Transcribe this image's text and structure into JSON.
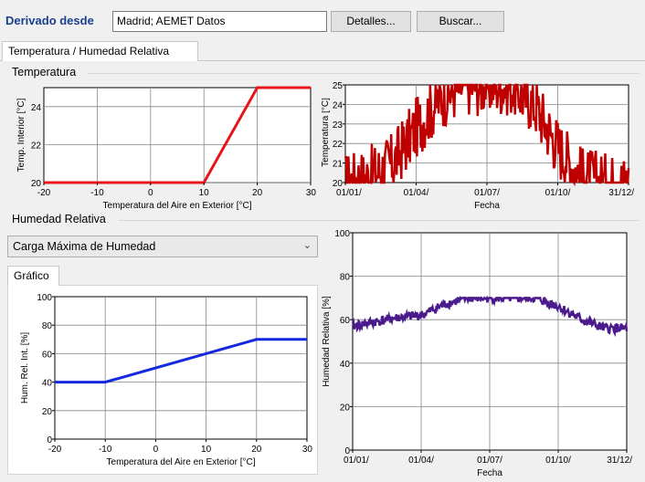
{
  "header": {
    "derived_label": "Derivado desde",
    "source_value": "Madrid; AEMET Datos",
    "details_button": "Detalles...",
    "search_button": "Buscar..."
  },
  "tabs": [
    {
      "label": "Temperatura / Humedad Relativa",
      "active": true
    }
  ],
  "temperature_group": {
    "title": "Temperatura",
    "setpoint_chart": {
      "type": "line",
      "xlabel": "Temperatura del Aire en Exterior [°C]",
      "ylabel": "Temp. Interior [°C]",
      "x_ticks": [
        "-20",
        "-10",
        "0",
        "10",
        "20",
        "30"
      ],
      "y_ticks": [
        "20",
        "22",
        "24"
      ],
      "color": "#e8141c"
    },
    "annual_chart": {
      "type": "line",
      "xlabel": "Fecha",
      "ylabel": "Temperatura [°C]",
      "x_ticks": [
        "01/01/",
        "01/04/",
        "01/07/",
        "01/10/",
        "31/12/"
      ],
      "y_ticks": [
        "20",
        "21",
        "22",
        "23",
        "24",
        "25"
      ],
      "color": "#c00000"
    }
  },
  "humidity_group": {
    "title": "Humedad Relativa",
    "mode_select": "Carga Máxima de Humedad",
    "subtab": "Gráfico",
    "setpoint_chart": {
      "type": "line",
      "xlabel": "Temperatura del Aire en Exterior [°C]",
      "ylabel": "Hum. Rel. Int. [%]",
      "x_ticks": [
        "-20",
        "-10",
        "0",
        "10",
        "20",
        "30"
      ],
      "y_ticks": [
        "0",
        "20",
        "40",
        "60",
        "80",
        "100"
      ],
      "color": "#1428e0"
    },
    "annual_chart": {
      "type": "line",
      "xlabel": "Fecha",
      "ylabel": "Humedad Relativa [%]",
      "x_ticks": [
        "01/01/",
        "01/04/",
        "01/07/",
        "01/10/",
        "31/12/"
      ],
      "y_ticks": [
        "0",
        "20",
        "40",
        "60",
        "80",
        "100"
      ],
      "color": "#4b1a8c"
    }
  },
  "chart_data": [
    {
      "type": "line",
      "xlabel": "Temperatura del Aire en Exterior [°C]",
      "ylabel": "Temp. Interior [°C]",
      "xlim": [
        -20,
        30
      ],
      "ylim": [
        20,
        25
      ],
      "x": [
        -20,
        10,
        20,
        30
      ],
      "y": [
        20,
        20,
        25,
        25
      ]
    },
    {
      "type": "line",
      "xlabel": "Fecha",
      "ylabel": "Temperatura [°C]",
      "x_ticks": [
        "01/01/",
        "01/04/",
        "01/07/",
        "01/10/",
        "31/12/"
      ],
      "ylim": [
        20,
        25
      ],
      "series": [
        {
          "values_by_month": [
            20,
            20.3,
            21,
            22.8,
            24.3,
            25,
            25,
            25,
            24,
            21.8,
            20.3,
            20
          ]
        }
      ]
    },
    {
      "type": "line",
      "xlabel": "Temperatura del Aire en Exterior [°C]",
      "ylabel": "Hum. Rel. Int. [%]",
      "xlim": [
        -20,
        30
      ],
      "ylim": [
        0,
        100
      ],
      "x": [
        -20,
        -10,
        20,
        30
      ],
      "y": [
        40,
        40,
        70,
        70
      ]
    },
    {
      "type": "line",
      "xlabel": "Fecha",
      "ylabel": "Humedad Relativa [%]",
      "x_ticks": [
        "01/01/",
        "01/04/",
        "01/07/",
        "01/10/",
        "31/12/"
      ],
      "ylim": [
        0,
        100
      ],
      "series": [
        {
          "values_by_month": [
            57,
            59,
            61,
            62,
            67,
            70,
            70,
            70,
            70,
            66,
            60,
            56
          ]
        }
      ]
    }
  ]
}
